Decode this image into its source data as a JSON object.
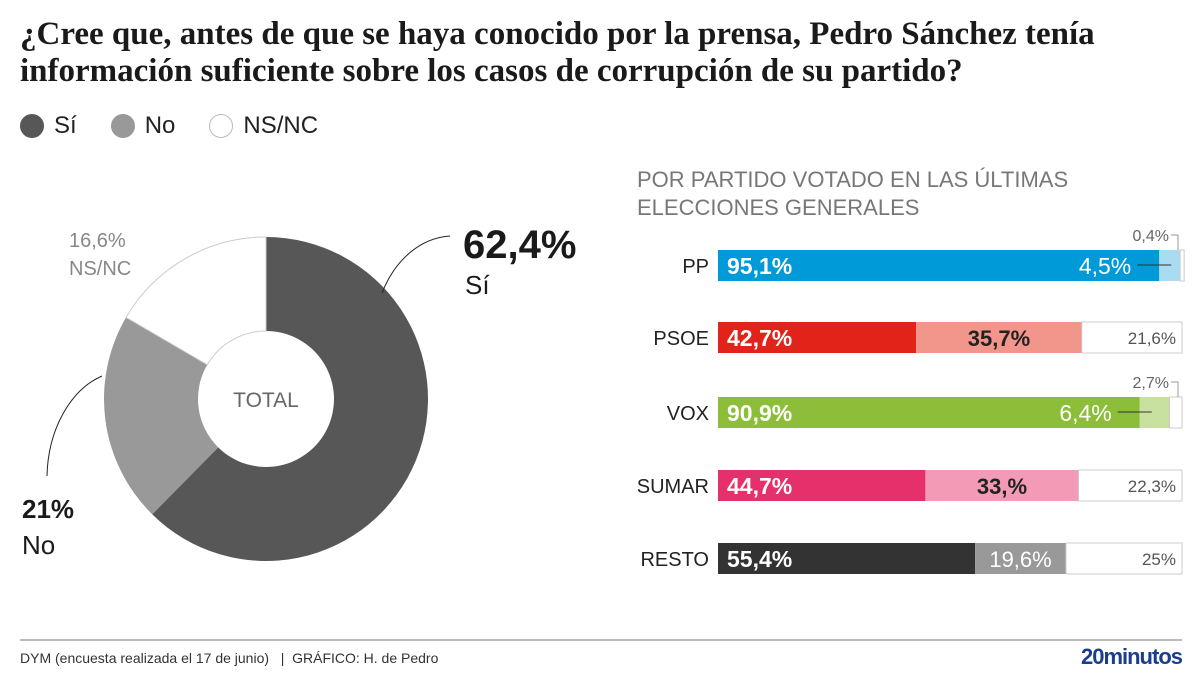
{
  "title": "¿Cree que, antes de que se haya conocido por la prensa, Pedro Sánchez tenía información suficiente sobre los casos de corrupción de su partido?",
  "legend": [
    {
      "label": "Sí",
      "color": "#575757"
    },
    {
      "label": "No",
      "color": "#999999"
    },
    {
      "label": "NS/NC",
      "color": "#ffffff"
    }
  ],
  "footer": {
    "source": "DYM (encuesta realizada el 17 de junio)   |  GRÁFICO: H. de Pedro",
    "logo": "20minutos"
  },
  "chart_data": [
    {
      "type": "pie",
      "center_label": "TOTAL",
      "slices": [
        {
          "label": "Sí",
          "value": 62.4,
          "text": "62,4%",
          "color": "#575757"
        },
        {
          "label": "No",
          "value": 21,
          "text": "21%",
          "color": "#999999"
        },
        {
          "label": "NS/NC",
          "value": 16.6,
          "text": "16,6%",
          "color": "#ffffff"
        }
      ]
    },
    {
      "type": "bar",
      "stacked": true,
      "orientation": "horizontal",
      "title": "POR PARTIDO VOTADO EN LAS ÚLTIMAS ELECCIONES GENERALES",
      "categories": [
        "PP",
        "PSOE",
        "VOX",
        "SUMAR",
        "RESTO"
      ],
      "series": [
        {
          "name": "Sí",
          "values": [
            95.1,
            42.7,
            90.9,
            44.7,
            55.4
          ],
          "labels": [
            "95,1%",
            "42,7%",
            "90,9%",
            "44,7%",
            "55,4%"
          ],
          "colors": [
            "#009ad9",
            "#e2231a",
            "#8cbe3a",
            "#e5306b",
            "#333333"
          ]
        },
        {
          "name": "No",
          "values": [
            4.5,
            35.7,
            6.4,
            33,
            19.6
          ],
          "labels": [
            "4,5%",
            "35,7%",
            "6,4%",
            "33,%",
            "19,6%"
          ],
          "colors": [
            "#a9dcf2",
            "#f2958b",
            "#c8e0a0",
            "#f39ab6",
            "#999999"
          ]
        },
        {
          "name": "NS/NC",
          "values": [
            0.4,
            21.6,
            2.7,
            22.3,
            25
          ],
          "labels": [
            "0,4%",
            "21,6%",
            "2,7%",
            "22,3%",
            "25%"
          ],
          "colors": [
            "#ffffff",
            "#ffffff",
            "#ffffff",
            "#ffffff",
            "#ffffff"
          ]
        }
      ],
      "xlim": [
        0,
        100
      ]
    }
  ]
}
